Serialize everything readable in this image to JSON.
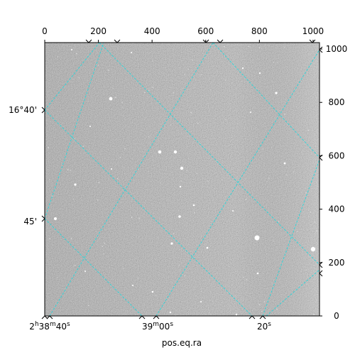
{
  "figure": {
    "xlabel": "pos.eq.ra",
    "pixel_axes": {
      "x": {
        "range": [
          0,
          1024
        ],
        "ticks": [
          "0",
          "200",
          "400",
          "600",
          "800",
          "1000"
        ],
        "tick_values": [
          0,
          200,
          400,
          600,
          800,
          1000
        ]
      },
      "y": {
        "range": [
          0,
          1024
        ],
        "ticks": [
          "0",
          "200",
          "400",
          "600",
          "800",
          "1000"
        ],
        "tick_values": [
          0,
          200,
          400,
          600,
          800,
          1000
        ]
      }
    },
    "world_axes": {
      "ra_ticks": [
        {
          "hh": "2",
          "mm": "38",
          "ss": "40",
          "main": "2",
          "h": "h",
          "m": "38",
          "mm_sup": "m",
          "s": "40",
          "s_sup": "s",
          "x_pix": 0
        },
        {
          "main": "39",
          "m_sup": "m",
          "s": "00",
          "s_sup": "s",
          "x_pix": 415
        },
        {
          "main": "20",
          "s_sup": "s",
          "x_pix": 820
        }
      ],
      "dec_ticks": [
        {
          "label": "16°40'",
          "y_pix": 772
        },
        {
          "label": "45'",
          "y_pix": 360
        }
      ]
    },
    "colors": {
      "grid": "#33d4d8",
      "image_bg": "#7a7a7a",
      "frame": "#000000"
    }
  }
}
